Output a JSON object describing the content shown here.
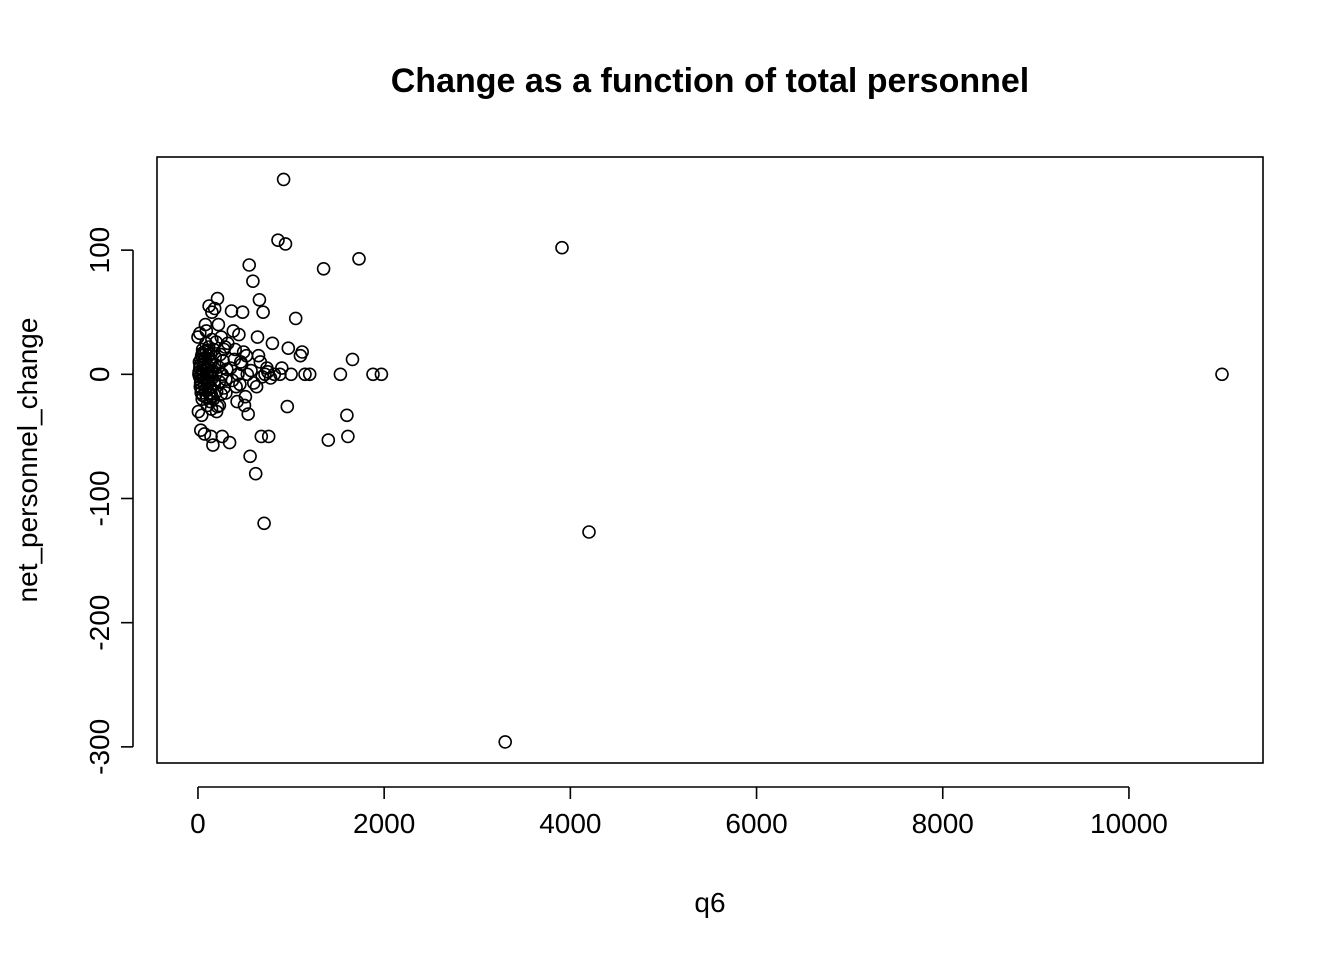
{
  "chart_data": {
    "type": "scatter",
    "title": "Change as a function of total personnel",
    "xlabel": "q6",
    "ylabel": "net_personnel_change",
    "xlim": [
      -440,
      11440
    ],
    "ylim": [
      -313,
      175
    ],
    "xticks": [
      0,
      2000,
      4000,
      6000,
      8000,
      10000
    ],
    "xtick_labels": [
      "0",
      "2000",
      "4000",
      "6000",
      "8000",
      "10000"
    ],
    "yticks": [
      -300,
      -200,
      -100,
      0,
      100
    ],
    "ytick_labels": [
      "-300",
      "-200",
      "-100",
      "0",
      "100"
    ],
    "grid": false,
    "marker": "open-circle",
    "points": [
      [
        10,
        0
      ],
      [
        20,
        5
      ],
      [
        30,
        -5
      ],
      [
        15,
        10
      ],
      [
        25,
        -10
      ],
      [
        40,
        15
      ],
      [
        35,
        -15
      ],
      [
        50,
        20
      ],
      [
        45,
        -20
      ],
      [
        60,
        0
      ],
      [
        55,
        8
      ],
      [
        70,
        -8
      ],
      [
        65,
        12
      ],
      [
        80,
        -12
      ],
      [
        75,
        18
      ],
      [
        90,
        -18
      ],
      [
        85,
        25
      ],
      [
        100,
        -25
      ],
      [
        95,
        5
      ],
      [
        110,
        -5
      ],
      [
        105,
        15
      ],
      [
        120,
        -15
      ],
      [
        115,
        22
      ],
      [
        130,
        -22
      ],
      [
        125,
        0
      ],
      [
        140,
        10
      ],
      [
        135,
        -10
      ],
      [
        150,
        28
      ],
      [
        145,
        -28
      ],
      [
        160,
        3
      ],
      [
        155,
        -3
      ],
      [
        170,
        20
      ],
      [
        165,
        -20
      ],
      [
        180,
        8
      ],
      [
        175,
        -8
      ],
      [
        190,
        0
      ],
      [
        185,
        14
      ],
      [
        200,
        -14
      ],
      [
        195,
        26
      ],
      [
        210,
        -26
      ],
      [
        220,
        6
      ],
      [
        230,
        -6
      ],
      [
        240,
        16
      ],
      [
        250,
        -16
      ],
      [
        260,
        0
      ],
      [
        270,
        11
      ],
      [
        280,
        -11
      ],
      [
        290,
        22
      ],
      [
        300,
        -4
      ],
      [
        310,
        4
      ],
      [
        0,
        30
      ],
      [
        5,
        -30
      ],
      [
        12,
        2
      ],
      [
        18,
        -2
      ],
      [
        22,
        7
      ],
      [
        28,
        -7
      ],
      [
        32,
        12
      ],
      [
        38,
        -12
      ],
      [
        42,
        0
      ],
      [
        48,
        17
      ],
      [
        52,
        -17
      ],
      [
        58,
        3
      ],
      [
        62,
        -3
      ],
      [
        68,
        9
      ],
      [
        72,
        -9
      ],
      [
        78,
        13
      ],
      [
        82,
        -13
      ],
      [
        88,
        0
      ],
      [
        92,
        19
      ],
      [
        98,
        -19
      ],
      [
        102,
        1
      ],
      [
        108,
        -1
      ],
      [
        112,
        6
      ],
      [
        118,
        -6
      ],
      [
        122,
        11
      ],
      [
        128,
        -11
      ],
      [
        132,
        0
      ],
      [
        138,
        16
      ],
      [
        142,
        -16
      ],
      [
        148,
        2
      ],
      [
        20,
        33
      ],
      [
        40,
        -33
      ],
      [
        90,
        35
      ],
      [
        30,
        -45
      ],
      [
        70,
        -48
      ],
      [
        80,
        40
      ],
      [
        120,
        55
      ],
      [
        150,
        50
      ],
      [
        140,
        -50
      ],
      [
        160,
        -57
      ],
      [
        180,
        53
      ],
      [
        200,
        -30
      ],
      [
        210,
        61
      ],
      [
        220,
        40
      ],
      [
        230,
        -25
      ],
      [
        250,
        30
      ],
      [
        260,
        -50
      ],
      [
        280,
        20
      ],
      [
        300,
        -15
      ],
      [
        320,
        25
      ],
      [
        340,
        -55
      ],
      [
        360,
        51
      ],
      [
        380,
        35
      ],
      [
        400,
        20
      ],
      [
        420,
        -22
      ],
      [
        440,
        32
      ],
      [
        460,
        10
      ],
      [
        480,
        50
      ],
      [
        500,
        -25
      ],
      [
        520,
        15
      ],
      [
        550,
        88
      ],
      [
        560,
        -66
      ],
      [
        590,
        75
      ],
      [
        620,
        -80
      ],
      [
        640,
        30
      ],
      [
        660,
        60
      ],
      [
        680,
        -50
      ],
      [
        700,
        50
      ],
      [
        710,
        -120
      ],
      [
        740,
        5
      ],
      [
        760,
        -50
      ],
      [
        800,
        25
      ],
      [
        820,
        0
      ],
      [
        860,
        108
      ],
      [
        880,
        0
      ],
      [
        900,
        5
      ],
      [
        920,
        157
      ],
      [
        940,
        105
      ],
      [
        960,
        -26
      ],
      [
        970,
        21
      ],
      [
        1000,
        0
      ],
      [
        1050,
        45
      ],
      [
        1100,
        15
      ],
      [
        1120,
        18
      ],
      [
        1150,
        0
      ],
      [
        1200,
        0
      ],
      [
        1350,
        85
      ],
      [
        1400,
        -53
      ],
      [
        1530,
        0
      ],
      [
        1600,
        -33
      ],
      [
        1610,
        -50
      ],
      [
        1660,
        12
      ],
      [
        1730,
        93
      ],
      [
        1880,
        0
      ],
      [
        1970,
        0
      ],
      [
        3300,
        -296
      ],
      [
        3910,
        102
      ],
      [
        4200,
        -127
      ],
      [
        11000,
        0
      ],
      [
        350,
        5
      ],
      [
        370,
        -5
      ],
      [
        390,
        12
      ],
      [
        410,
        -10
      ],
      [
        430,
        0
      ],
      [
        450,
        -8
      ],
      [
        470,
        8
      ],
      [
        490,
        18
      ],
      [
        510,
        -18
      ],
      [
        530,
        0
      ],
      [
        540,
        -32
      ],
      [
        570,
        3
      ],
      [
        600,
        -7
      ],
      [
        630,
        -10
      ],
      [
        650,
        15
      ],
      [
        670,
        10
      ],
      [
        690,
        -2
      ],
      [
        720,
        0
      ],
      [
        750,
        2
      ],
      [
        780,
        -3
      ]
    ]
  }
}
